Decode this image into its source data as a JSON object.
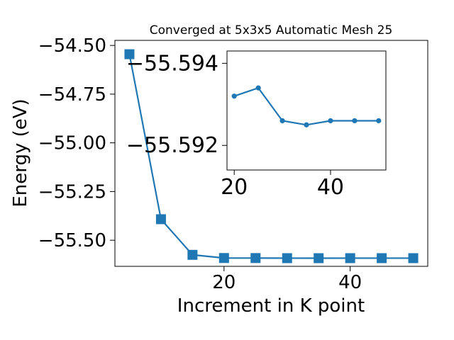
{
  "chart_data": [
    {
      "type": "line",
      "title": "Converged at 5x3x5 Automatic Mesh 25",
      "xlabel": "Increment in K point",
      "ylabel": "Energy (eV)",
      "xlim": [
        2.7,
        52.3
      ],
      "ylim": [
        -55.634,
        -54.474
      ],
      "x_ticks": [
        20,
        40
      ],
      "x_tick_labels": [
        "20",
        "40"
      ],
      "y_ticks": [
        -54.5,
        -54.75,
        -55.0,
        -55.25,
        -55.5
      ],
      "y_tick_labels": [
        "−54.50",
        "−54.75",
        "−55.00",
        "−55.25",
        "−55.50"
      ],
      "grid": false,
      "marker": "square",
      "color": "#1f77b4",
      "series": [
        {
          "x": [
            5,
            10,
            15,
            20,
            25,
            30,
            35,
            40,
            45,
            50
          ],
          "y": [
            -54.545,
            -55.392,
            -55.575,
            -55.5913,
            -55.5915,
            -55.592,
            -55.5921,
            -55.592,
            -55.592,
            -55.592
          ]
        }
      ]
    },
    {
      "type": "line",
      "title": "",
      "xlabel": "",
      "ylabel": "",
      "xlim": [
        18.5,
        51.5
      ],
      "ylim": [
        -55.5914,
        -55.5943
      ],
      "x_ticks": [
        20,
        40
      ],
      "x_tick_labels": [
        "20",
        "40"
      ],
      "y_ticks": [
        -55.594,
        -55.592
      ],
      "y_tick_labels": [
        "−55.594",
        "−55.592"
      ],
      "grid": false,
      "marker": "circle",
      "color": "#1f77b4",
      "series": [
        {
          "x": [
            20,
            25,
            30,
            35,
            40,
            45,
            50
          ],
          "y": [
            -55.5932,
            -55.5934,
            -55.5926,
            -55.5925,
            -55.5926,
            -55.5926,
            -55.5926
          ]
        }
      ]
    }
  ]
}
